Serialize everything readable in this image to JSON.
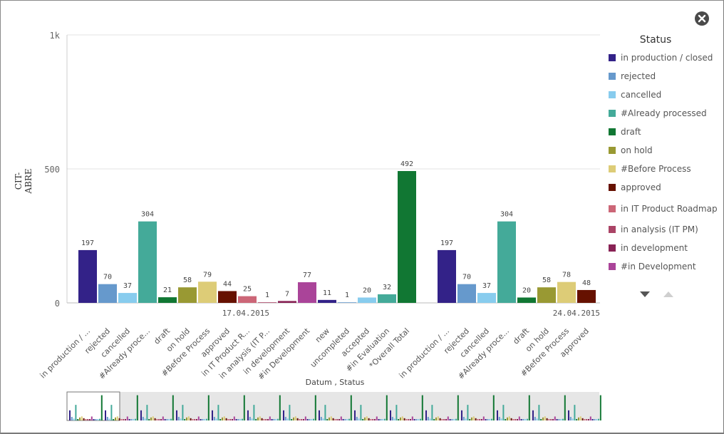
{
  "chart_data": {
    "type": "bar",
    "title": "",
    "xlabel": "Datum , Status",
    "ylabel": "CIT-ABRE",
    "ylim": [
      0,
      1000
    ],
    "yticks": [
      {
        "value": 0,
        "label": "0"
      },
      {
        "value": 500,
        "label": "500"
      },
      {
        "value": 1000,
        "label": "1k"
      }
    ],
    "groups": [
      {
        "label": "17.04.2015",
        "bars": [
          {
            "category": "in production / ...",
            "status": "in production / closed",
            "value": 197
          },
          {
            "category": "rejected",
            "status": "rejected",
            "value": 70
          },
          {
            "category": "cancelled",
            "status": "cancelled",
            "value": 37
          },
          {
            "category": "#Already proce...",
            "status": "#Already processed",
            "value": 304
          },
          {
            "category": "draft",
            "status": "draft",
            "value": 21
          },
          {
            "category": "on hold",
            "status": "on hold",
            "value": 58
          },
          {
            "category": "#Before Process",
            "status": "#Before Process",
            "value": 79
          },
          {
            "category": "approved",
            "status": "approved",
            "value": 44
          },
          {
            "category": "in IT Product R...",
            "status": "in IT Product Roadmap",
            "value": 25
          },
          {
            "category": "in analysis (IT P...",
            "status": "in analysis (IT PM)",
            "value": 1
          },
          {
            "category": "in development",
            "status": "in development",
            "value": 7
          },
          {
            "category": "#in Development",
            "status": "#in Development",
            "value": 77
          },
          {
            "category": "new",
            "status": "new",
            "value": 11
          },
          {
            "category": "uncompleted",
            "status": "uncompleted",
            "value": 1
          },
          {
            "category": "accepted",
            "status": "accepted",
            "value": 20
          },
          {
            "category": "#in Evaluation",
            "status": "#in Evaluation",
            "value": 32
          },
          {
            "category": "*Overall Total",
            "status": "*Overall Total",
            "value": 492
          }
        ]
      },
      {
        "label": "24.04.2015",
        "bars": [
          {
            "category": "in production / ...",
            "status": "in production / closed",
            "value": 197
          },
          {
            "category": "rejected",
            "status": "rejected",
            "value": 70
          },
          {
            "category": "cancelled",
            "status": "cancelled",
            "value": 37
          },
          {
            "category": "#Already proce...",
            "status": "#Already processed",
            "value": 304
          },
          {
            "category": "draft",
            "status": "draft",
            "value": 20
          },
          {
            "category": "on hold",
            "status": "on hold",
            "value": 58
          },
          {
            "category": "#Before Process",
            "status": "#Before Process",
            "value": 78
          },
          {
            "category": "approved",
            "status": "approved",
            "value": 48
          }
        ]
      }
    ],
    "colors": {
      "in production / closed": "#332288",
      "rejected": "#6699cc",
      "cancelled": "#88ccee",
      "#Already processed": "#44aa99",
      "draft": "#117733",
      "on hold": "#999933",
      "#Before Process": "#ddcc77",
      "approved": "#661100",
      "in IT Product Roadmap": "#cc6677",
      "in analysis (IT PM)": "#aa4466",
      "in development": "#882255",
      "#in Development": "#aa4499",
      "new": "#332288",
      "uncompleted": "#6699cc",
      "accepted": "#88ccee",
      "#in Evaluation": "#44aa99",
      "*Overall Total": "#117733"
    },
    "legend": {
      "title": "Status",
      "position": "right",
      "items": [
        "in production / closed",
        "rejected",
        "cancelled",
        "#Already processed",
        "draft",
        "on hold",
        "#Before Process",
        "approved",
        "in IT Product Roadmap",
        "in analysis (IT PM)",
        "in development",
        "#in Development"
      ]
    }
  }
}
